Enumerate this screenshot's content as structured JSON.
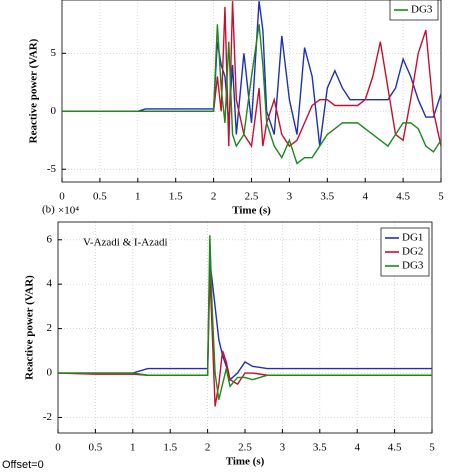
{
  "chart_data": [
    {
      "type": "line",
      "xlabel": "Time (s)",
      "ylabel": "Reactive power (VAR)",
      "x": [
        0,
        0.5,
        1,
        1.1,
        1.5,
        2,
        2.05,
        2.1,
        2.15,
        2.2,
        2.25,
        2.3,
        2.4,
        2.5,
        2.6,
        2.65,
        2.7,
        2.8,
        2.9,
        3,
        3.1,
        3.2,
        3.3,
        3.4,
        3.5,
        3.6,
        3.7,
        3.8,
        3.9,
        4,
        4.1,
        4.2,
        4.3,
        4.4,
        4.5,
        4.6,
        4.7,
        4.8,
        4.9,
        5
      ],
      "series": [
        {
          "color": "#1f2fb8",
          "values": [
            0,
            0,
            0,
            0.2,
            0.2,
            0.2,
            6,
            4,
            3,
            -1,
            4,
            -2,
            5,
            -1,
            9.5,
            7,
            0,
            -2,
            6.5,
            1,
            -2,
            5.5,
            3,
            -3,
            2,
            3.5,
            2,
            1,
            1,
            1,
            1,
            1,
            1,
            2,
            4.5,
            3,
            1,
            -0.5,
            -0.5,
            1.5
          ]
        },
        {
          "color": "#c8102e",
          "values": [
            0,
            0,
            0,
            0,
            0,
            0,
            3,
            0,
            9,
            -3,
            9.5,
            1,
            -2,
            -3,
            2,
            -3,
            -1,
            1,
            -2,
            -3,
            -2.5,
            -1,
            0.5,
            1,
            1,
            0.5,
            0.5,
            0.5,
            0.5,
            1,
            3,
            6,
            2,
            -2,
            -2.5,
            1,
            5,
            7,
            0,
            -3
          ]
        },
        {
          "name": "DG3",
          "color": "#1a8a1a",
          "values": [
            0,
            0,
            0,
            0,
            0,
            0,
            7.5,
            2,
            -1,
            6,
            -2,
            -3,
            -2,
            3,
            7.5,
            4,
            -1,
            -3,
            -4,
            -2.5,
            -4.5,
            -4,
            -4,
            -3,
            -2,
            -1.5,
            -1,
            -1,
            -1,
            -1.5,
            -2,
            -2.5,
            -3,
            -2,
            -1,
            -1,
            -1.5,
            -3,
            -3.5,
            -2.5
          ]
        }
      ],
      "xlim": [
        0,
        5
      ],
      "ylim": [
        -6.1,
        9.6
      ],
      "xticks": [
        0,
        0.5,
        1,
        1.5,
        2,
        2.5,
        3,
        3.5,
        4,
        4.5,
        5
      ],
      "yticks": [
        -5,
        0,
        5
      ],
      "grid": true,
      "legend": "upper right"
    },
    {
      "type": "line",
      "panel_label": "(b)",
      "multiplier": "×10⁴",
      "annotation": "V-Azadi & I-Azadi",
      "note": "Offset=0",
      "xlabel": "Time (s)",
      "ylabel": "Reactive power (VAR)",
      "x": [
        0,
        0.5,
        1,
        1.2,
        1.5,
        2,
        2.03,
        2.06,
        2.1,
        2.15,
        2.2,
        2.25,
        2.3,
        2.4,
        2.5,
        2.6,
        2.8,
        3,
        3.5,
        4,
        4.5,
        5
      ],
      "series": [
        {
          "name": "DG1",
          "color": "#1f2fb8",
          "values": [
            0,
            0,
            0,
            0.2,
            0.2,
            0.2,
            5,
            4.2,
            3,
            1.5,
            0.8,
            0.3,
            -0.3,
            0,
            0.5,
            0.3,
            0.2,
            0.2,
            0.2,
            0.2,
            0.2,
            0.2
          ]
        },
        {
          "name": "DG2",
          "color": "#c8102e",
          "values": [
            0,
            -0.05,
            -0.05,
            -0.1,
            -0.1,
            -0.1,
            4.5,
            2,
            -1.5,
            -0.5,
            1,
            0.5,
            -0.3,
            -0.5,
            0,
            0,
            -0.1,
            -0.1,
            -0.1,
            -0.1,
            -0.1,
            -0.1
          ]
        },
        {
          "name": "DG3",
          "color": "#1a8a1a",
          "values": [
            0,
            0,
            0,
            -0.1,
            -0.1,
            -0.1,
            6.2,
            3,
            0,
            -1.2,
            -0.5,
            0.2,
            -0.6,
            -0.2,
            -0.2,
            -0.3,
            -0.1,
            -0.1,
            -0.1,
            -0.1,
            -0.1,
            -0.1
          ]
        }
      ],
      "xlim": [
        0,
        5
      ],
      "ylim": [
        -2.7,
        6.8
      ],
      "xticks": [
        0,
        0.5,
        1,
        1.5,
        2,
        2.5,
        3,
        3.5,
        4,
        4.5,
        5
      ],
      "yticks": [
        -2,
        0,
        2,
        4,
        6
      ],
      "grid": true,
      "legend": "upper right"
    }
  ]
}
